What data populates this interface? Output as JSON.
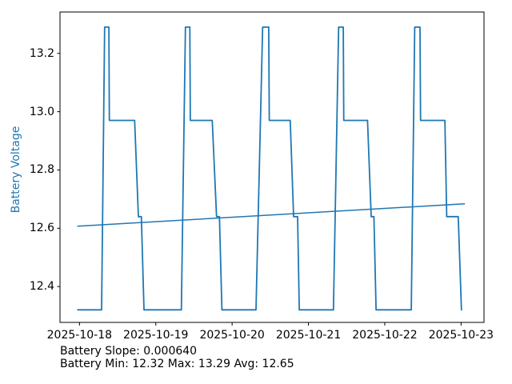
{
  "annotations": {
    "line1": "Battery Slope: 0.000640",
    "line2": "Battery Min: 12.32 Max: 13.29 Avg: 12.65"
  },
  "colors": {
    "line": "#1f77b4",
    "ylabel": "#1f77b4",
    "axis": "#000000",
    "background": "#ffffff"
  },
  "chart_data": {
    "type": "line",
    "title": "",
    "xlabel": "",
    "ylabel": "Battery Voltage",
    "grid": false,
    "legend": null,
    "x_epoch_date": "2025-10-18",
    "x_ticks_days": [
      0,
      1,
      2,
      3,
      4,
      5
    ],
    "x_tick_labels": [
      "2025-10-18",
      "2025-10-19",
      "2025-10-20",
      "2025-10-21",
      "2025-10-22",
      "2025-10-23"
    ],
    "y_ticks": [
      12.4,
      12.6,
      12.8,
      13.0,
      13.2
    ],
    "y_tick_labels": [
      "12.4",
      "12.6",
      "12.8",
      "13.0",
      "13.2"
    ],
    "xlim_days": [
      -0.255,
      5.3
    ],
    "ylim": [
      12.277,
      13.342
    ],
    "stats": {
      "slope": 0.00064,
      "min": 12.32,
      "max": 13.29,
      "avg": 12.65
    },
    "series": [
      {
        "name": "battery-voltage",
        "color": "#1f77b4",
        "width": 1.8,
        "points": [
          [
            -0.03,
            12.32
          ],
          [
            0.29,
            12.32
          ],
          [
            0.33,
            13.29
          ],
          [
            0.385,
            13.29
          ],
          [
            0.392,
            12.97
          ],
          [
            0.723,
            12.97
          ],
          [
            0.772,
            12.64
          ],
          [
            0.811,
            12.64
          ],
          [
            0.846,
            12.32
          ],
          [
            1.335,
            12.32
          ],
          [
            1.388,
            13.29
          ],
          [
            1.446,
            13.29
          ],
          [
            1.452,
            12.97
          ],
          [
            1.74,
            12.97
          ],
          [
            1.796,
            12.64
          ],
          [
            1.834,
            12.64
          ],
          [
            1.866,
            12.32
          ],
          [
            2.313,
            12.32
          ],
          [
            2.4,
            13.29
          ],
          [
            2.48,
            13.29
          ],
          [
            2.487,
            12.97
          ],
          [
            2.761,
            12.97
          ],
          [
            2.805,
            12.64
          ],
          [
            2.858,
            12.64
          ],
          [
            2.88,
            12.32
          ],
          [
            3.327,
            12.32
          ],
          [
            3.396,
            13.29
          ],
          [
            3.456,
            13.29
          ],
          [
            3.463,
            12.97
          ],
          [
            3.774,
            12.97
          ],
          [
            3.822,
            12.64
          ],
          [
            3.858,
            12.64
          ],
          [
            3.886,
            12.32
          ],
          [
            4.347,
            12.32
          ],
          [
            4.392,
            13.29
          ],
          [
            4.462,
            13.29
          ],
          [
            4.469,
            12.97
          ],
          [
            4.787,
            12.97
          ],
          [
            4.812,
            12.64
          ],
          [
            4.962,
            12.64
          ],
          [
            5.004,
            12.32
          ],
          [
            5.014,
            12.32
          ]
        ]
      },
      {
        "name": "battery-trend",
        "color": "#1f77b4",
        "width": 1.5,
        "points": [
          [
            -0.03,
            12.607
          ],
          [
            5.05,
            12.684
          ]
        ]
      }
    ]
  }
}
